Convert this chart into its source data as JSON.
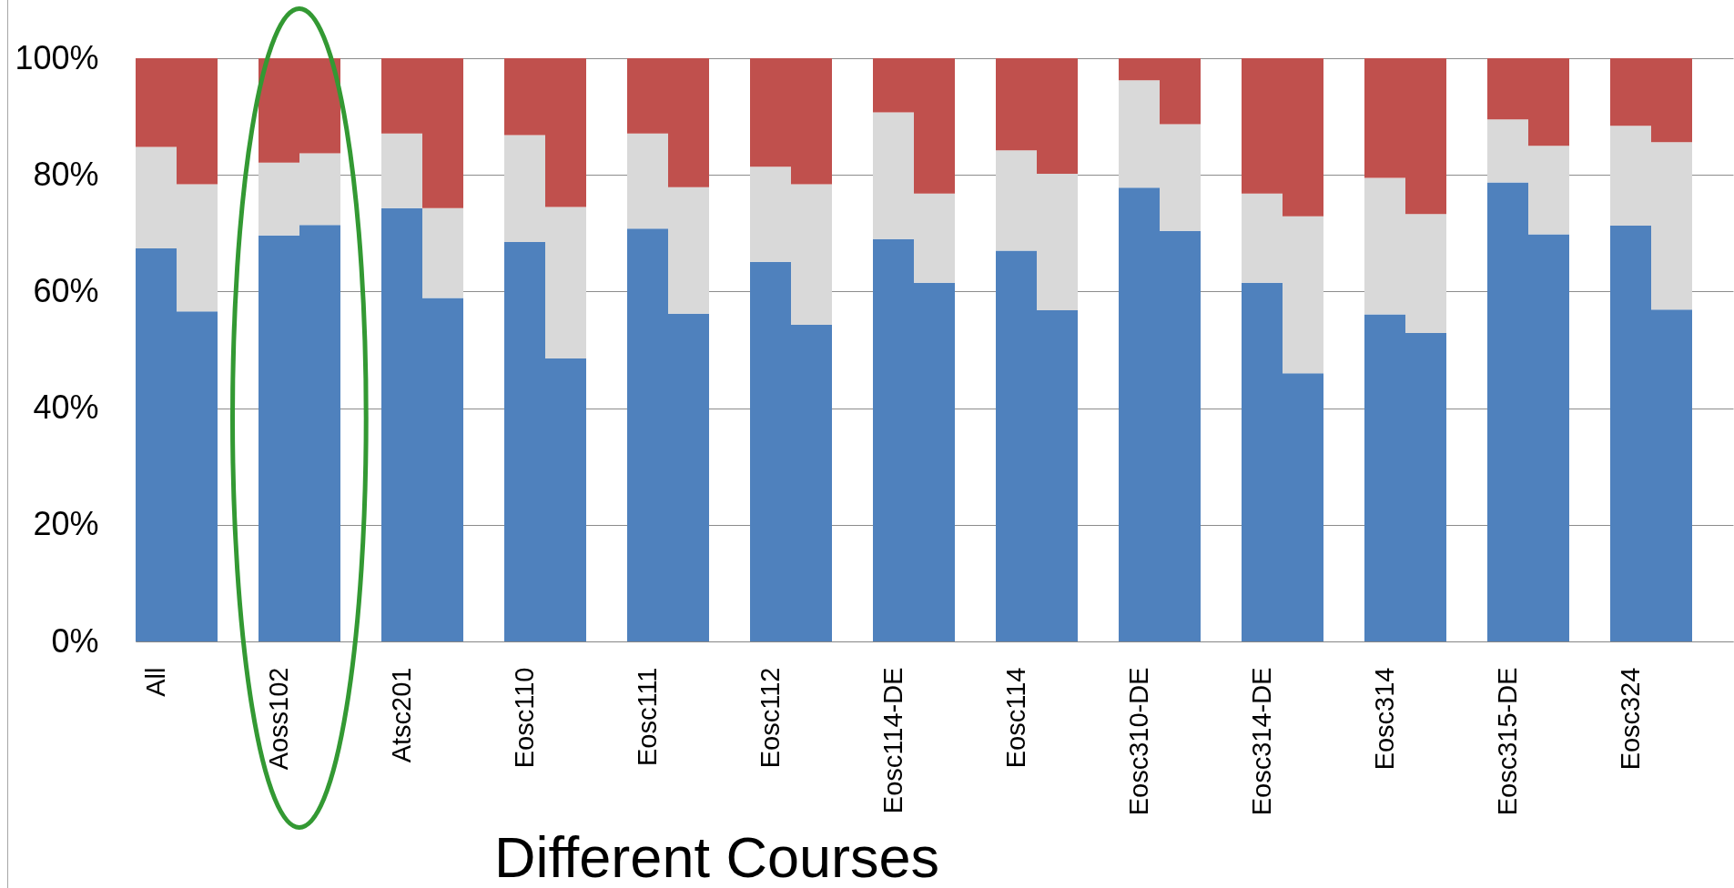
{
  "chart_data": {
    "type": "bar",
    "stacked": true,
    "xlabel": "Different Courses",
    "categories": [
      "All",
      null,
      null,
      "Aoss102",
      null,
      null,
      "Atsc201",
      null,
      null,
      "Eosc110",
      null,
      null,
      "Eosc111",
      null,
      null,
      "Eosc112",
      null,
      null,
      "Eosc114-DE",
      null,
      null,
      "Eosc114",
      null,
      null,
      "Eosc310-DE",
      null,
      null,
      "Eosc314-DE",
      null,
      null,
      "Eosc314",
      null,
      null,
      "Eosc315-DE",
      null,
      null,
      "Eosc324",
      null,
      null
    ],
    "series": [
      {
        "color": "#4f81bd",
        "values": [
          67.4,
          56.6,
          null,
          69.6,
          71.4,
          null,
          74.3,
          58.9,
          null,
          68.5,
          48.5,
          null,
          70.8,
          56.2,
          null,
          65.1,
          54.3,
          null,
          69.0,
          61.5,
          null,
          67.0,
          56.8,
          null,
          77.8,
          70.4,
          null,
          61.5,
          46.0,
          null,
          56.1,
          52.9,
          null,
          78.7,
          69.8,
          null,
          71.3,
          56.9,
          null
        ]
      },
      {
        "color": "#d9d9d9",
        "values": [
          17.4,
          21.8,
          null,
          12.5,
          12.3,
          null,
          12.8,
          15.4,
          null,
          18.3,
          26.0,
          null,
          16.3,
          21.7,
          null,
          16.3,
          24.1,
          null,
          21.7,
          15.3,
          null,
          17.2,
          23.4,
          null,
          18.4,
          18.3,
          null,
          15.3,
          26.9,
          null,
          23.4,
          20.4,
          null,
          10.8,
          15.2,
          null,
          17.1,
          28.7,
          null
        ]
      },
      {
        "color": "#c0504d",
        "values": [
          15.2,
          21.6,
          null,
          17.9,
          16.3,
          null,
          12.9,
          25.7,
          null,
          13.2,
          25.5,
          null,
          12.9,
          22.1,
          null,
          18.6,
          21.6,
          null,
          9.3,
          23.2,
          null,
          15.8,
          19.8,
          null,
          3.8,
          11.3,
          null,
          23.2,
          27.1,
          null,
          20.5,
          26.7,
          null,
          10.5,
          15.0,
          null,
          11.6,
          14.4,
          null
        ]
      }
    ],
    "ylim": [
      0,
      100
    ],
    "yticks": [
      {
        "value": 0,
        "label": "0%"
      },
      {
        "value": 20,
        "label": "20%"
      },
      {
        "value": 40,
        "label": "40%"
      },
      {
        "value": 60,
        "label": "60%"
      },
      {
        "value": 80,
        "label": "80%"
      },
      {
        "value": 100,
        "label": "100%"
      }
    ],
    "grid": "y"
  }
}
